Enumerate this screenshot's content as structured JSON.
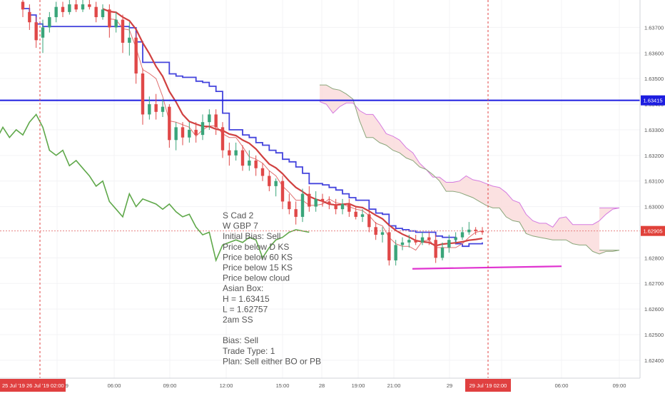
{
  "chart_data": {
    "type": "candlestick",
    "y_axis": {
      "range": [
        1.6233,
        1.63807
      ],
      "ticks": [
        "1.63700",
        "1.63600",
        "1.63500",
        "1.63400",
        "1.63300",
        "1.63200",
        "1.63100",
        "1.63000",
        "1.62800",
        "1.62700",
        "1.62600",
        "1.62500",
        "1.62400"
      ]
    },
    "x_axis": {
      "ticks": [
        "26 Jul '19",
        "06:00",
        "09:00",
        "12:00",
        "15:00",
        "28",
        "19:00",
        "21:00",
        "29",
        "02:00",
        "06:00",
        "09:00"
      ],
      "highlight_left": "25 Jul '19",
      "highlight_right": "29 Jul '19  02:00"
    },
    "price_labels": [
      {
        "value": 1.63415,
        "text": "1.63415",
        "color": "#1d1de0"
      },
      {
        "value": 1.62905,
        "text": "1.62905",
        "color": "#e0413a"
      }
    ],
    "horizontal_levels": [
      1.63415,
      1.62905
    ],
    "annotation_lines": [
      "S Cad 2",
      "W GBP 7",
      "Initial Bias:  Sell",
      "Price below D KS",
      "Price below 60 KS",
      "Price below 15 KS",
      "Price below cloud",
      "Asian Box:",
      "H = 1.63415",
      "L = 1.62757",
      "2am SS",
      "",
      "Bias: Sell",
      "Trade Type: 1",
      "Plan:  Sell either BO or PB"
    ],
    "candles": [
      {
        "o": 1.638,
        "c": 1.6377,
        "h": 1.63807,
        "l": 1.6374
      },
      {
        "o": 1.6376,
        "c": 1.6372,
        "h": 1.6379,
        "l": 1.6369
      },
      {
        "o": 1.6372,
        "c": 1.6365,
        "h": 1.6374,
        "l": 1.6362
      },
      {
        "o": 1.6366,
        "c": 1.637,
        "h": 1.6373,
        "l": 1.636
      },
      {
        "o": 1.637,
        "c": 1.6374,
        "h": 1.6376,
        "l": 1.6368
      },
      {
        "o": 1.6374,
        "c": 1.6378,
        "h": 1.638,
        "l": 1.6372
      },
      {
        "o": 1.6378,
        "c": 1.6376,
        "h": 1.638,
        "l": 1.6374
      },
      {
        "o": 1.6376,
        "c": 1.6379,
        "h": 1.63807,
        "l": 1.6375
      },
      {
        "o": 1.6379,
        "c": 1.6377,
        "h": 1.63807,
        "l": 1.6376
      },
      {
        "o": 1.6377,
        "c": 1.6379,
        "h": 1.63807,
        "l": 1.6376
      },
      {
        "o": 1.6379,
        "c": 1.6378,
        "h": 1.63807,
        "l": 1.6377
      },
      {
        "o": 1.6378,
        "c": 1.6374,
        "h": 1.638,
        "l": 1.6372
      },
      {
        "o": 1.6374,
        "c": 1.6377,
        "h": 1.6379,
        "l": 1.6373
      },
      {
        "o": 1.6377,
        "c": 1.637,
        "h": 1.6379,
        "l": 1.6366
      },
      {
        "o": 1.637,
        "c": 1.6373,
        "h": 1.6376,
        "l": 1.6368
      },
      {
        "o": 1.6373,
        "c": 1.6364,
        "h": 1.6375,
        "l": 1.636
      },
      {
        "o": 1.6364,
        "c": 1.6366,
        "h": 1.6372,
        "l": 1.6359
      },
      {
        "o": 1.6366,
        "c": 1.6352,
        "h": 1.6368,
        "l": 1.6348
      },
      {
        "o": 1.6352,
        "c": 1.6336,
        "h": 1.6354,
        "l": 1.6332
      },
      {
        "o": 1.6336,
        "c": 1.634,
        "h": 1.6343,
        "l": 1.6334
      },
      {
        "o": 1.634,
        "c": 1.6337,
        "h": 1.6344,
        "l": 1.6334
      },
      {
        "o": 1.6337,
        "c": 1.6339,
        "h": 1.6342,
        "l": 1.6335
      },
      {
        "o": 1.6339,
        "c": 1.6326,
        "h": 1.634,
        "l": 1.6323
      },
      {
        "o": 1.6326,
        "c": 1.6331,
        "h": 1.6333,
        "l": 1.6322
      },
      {
        "o": 1.6331,
        "c": 1.6327,
        "h": 1.6333,
        "l": 1.6324
      },
      {
        "o": 1.6327,
        "c": 1.633,
        "h": 1.6333,
        "l": 1.6325
      },
      {
        "o": 1.633,
        "c": 1.6328,
        "h": 1.6333,
        "l": 1.6325
      },
      {
        "o": 1.6328,
        "c": 1.6333,
        "h": 1.6336,
        "l": 1.6326
      },
      {
        "o": 1.6333,
        "c": 1.6336,
        "h": 1.6338,
        "l": 1.633
      },
      {
        "o": 1.6336,
        "c": 1.6331,
        "h": 1.6338,
        "l": 1.6328
      },
      {
        "o": 1.6331,
        "c": 1.6322,
        "h": 1.6333,
        "l": 1.6319
      },
      {
        "o": 1.6322,
        "c": 1.632,
        "h": 1.6325,
        "l": 1.6316
      },
      {
        "o": 1.632,
        "c": 1.6322,
        "h": 1.6325,
        "l": 1.6318
      },
      {
        "o": 1.6322,
        "c": 1.6316,
        "h": 1.6324,
        "l": 1.6314
      },
      {
        "o": 1.6316,
        "c": 1.6318,
        "h": 1.6322,
        "l": 1.6314
      },
      {
        "o": 1.6318,
        "c": 1.6315,
        "h": 1.632,
        "l": 1.6312
      },
      {
        "o": 1.6315,
        "c": 1.6312,
        "h": 1.6317,
        "l": 1.631
      },
      {
        "o": 1.6312,
        "c": 1.6308,
        "h": 1.6314,
        "l": 1.6306
      },
      {
        "o": 1.6308,
        "c": 1.631,
        "h": 1.6311,
        "l": 1.6304
      },
      {
        "o": 1.631,
        "c": 1.6302,
        "h": 1.6312,
        "l": 1.6299
      },
      {
        "o": 1.6302,
        "c": 1.6299,
        "h": 1.6305,
        "l": 1.6297
      },
      {
        "o": 1.6299,
        "c": 1.6296,
        "h": 1.6302,
        "l": 1.6293
      },
      {
        "o": 1.6296,
        "c": 1.6305,
        "h": 1.6307,
        "l": 1.6294
      },
      {
        "o": 1.6305,
        "c": 1.63,
        "h": 1.6308,
        "l": 1.6298
      },
      {
        "o": 1.63,
        "c": 1.6303,
        "h": 1.6306,
        "l": 1.6298
      },
      {
        "o": 1.6303,
        "c": 1.6302,
        "h": 1.6305,
        "l": 1.63
      },
      {
        "o": 1.6302,
        "c": 1.6301,
        "h": 1.6304,
        "l": 1.6299
      },
      {
        "o": 1.6301,
        "c": 1.6299,
        "h": 1.6303,
        "l": 1.6297
      },
      {
        "o": 1.6299,
        "c": 1.6301,
        "h": 1.6303,
        "l": 1.6297
      },
      {
        "o": 1.6301,
        "c": 1.6298,
        "h": 1.6303,
        "l": 1.6296
      },
      {
        "o": 1.6298,
        "c": 1.6296,
        "h": 1.63,
        "l": 1.6295
      },
      {
        "o": 1.6296,
        "c": 1.6297,
        "h": 1.6299,
        "l": 1.6294
      },
      {
        "o": 1.6297,
        "c": 1.6292,
        "h": 1.6299,
        "l": 1.629
      },
      {
        "o": 1.6292,
        "c": 1.6289,
        "h": 1.6294,
        "l": 1.6287
      },
      {
        "o": 1.6289,
        "c": 1.629,
        "h": 1.6292,
        "l": 1.6286
      },
      {
        "o": 1.629,
        "c": 1.6279,
        "h": 1.6292,
        "l": 1.6277
      },
      {
        "o": 1.6279,
        "c": 1.6285,
        "h": 1.6287,
        "l": 1.6277
      },
      {
        "o": 1.6285,
        "c": 1.6286,
        "h": 1.6288,
        "l": 1.6283
      },
      {
        "o": 1.6286,
        "c": 1.6287,
        "h": 1.6289,
        "l": 1.6284
      },
      {
        "o": 1.6287,
        "c": 1.6286,
        "h": 1.6289,
        "l": 1.6285
      },
      {
        "o": 1.6286,
        "c": 1.6288,
        "h": 1.629,
        "l": 1.6285
      },
      {
        "o": 1.6288,
        "c": 1.6287,
        "h": 1.629,
        "l": 1.6285
      },
      {
        "o": 1.6287,
        "c": 1.628,
        "h": 1.6289,
        "l": 1.6278
      },
      {
        "o": 1.628,
        "c": 1.6284,
        "h": 1.6286,
        "l": 1.6279
      },
      {
        "o": 1.6284,
        "c": 1.6287,
        "h": 1.6289,
        "l": 1.6282
      },
      {
        "o": 1.6287,
        "c": 1.6288,
        "h": 1.629,
        "l": 1.6286
      },
      {
        "o": 1.6288,
        "c": 1.629,
        "h": 1.6292,
        "l": 1.6287
      },
      {
        "o": 1.629,
        "c": 1.6291,
        "h": 1.6294,
        "l": 1.6289
      },
      {
        "o": 1.6291,
        "c": 1.62905,
        "h": 1.6292,
        "l": 1.6289
      },
      {
        "o": 1.62905,
        "c": 1.629,
        "h": 1.6292,
        "l": 1.6289
      }
    ]
  }
}
